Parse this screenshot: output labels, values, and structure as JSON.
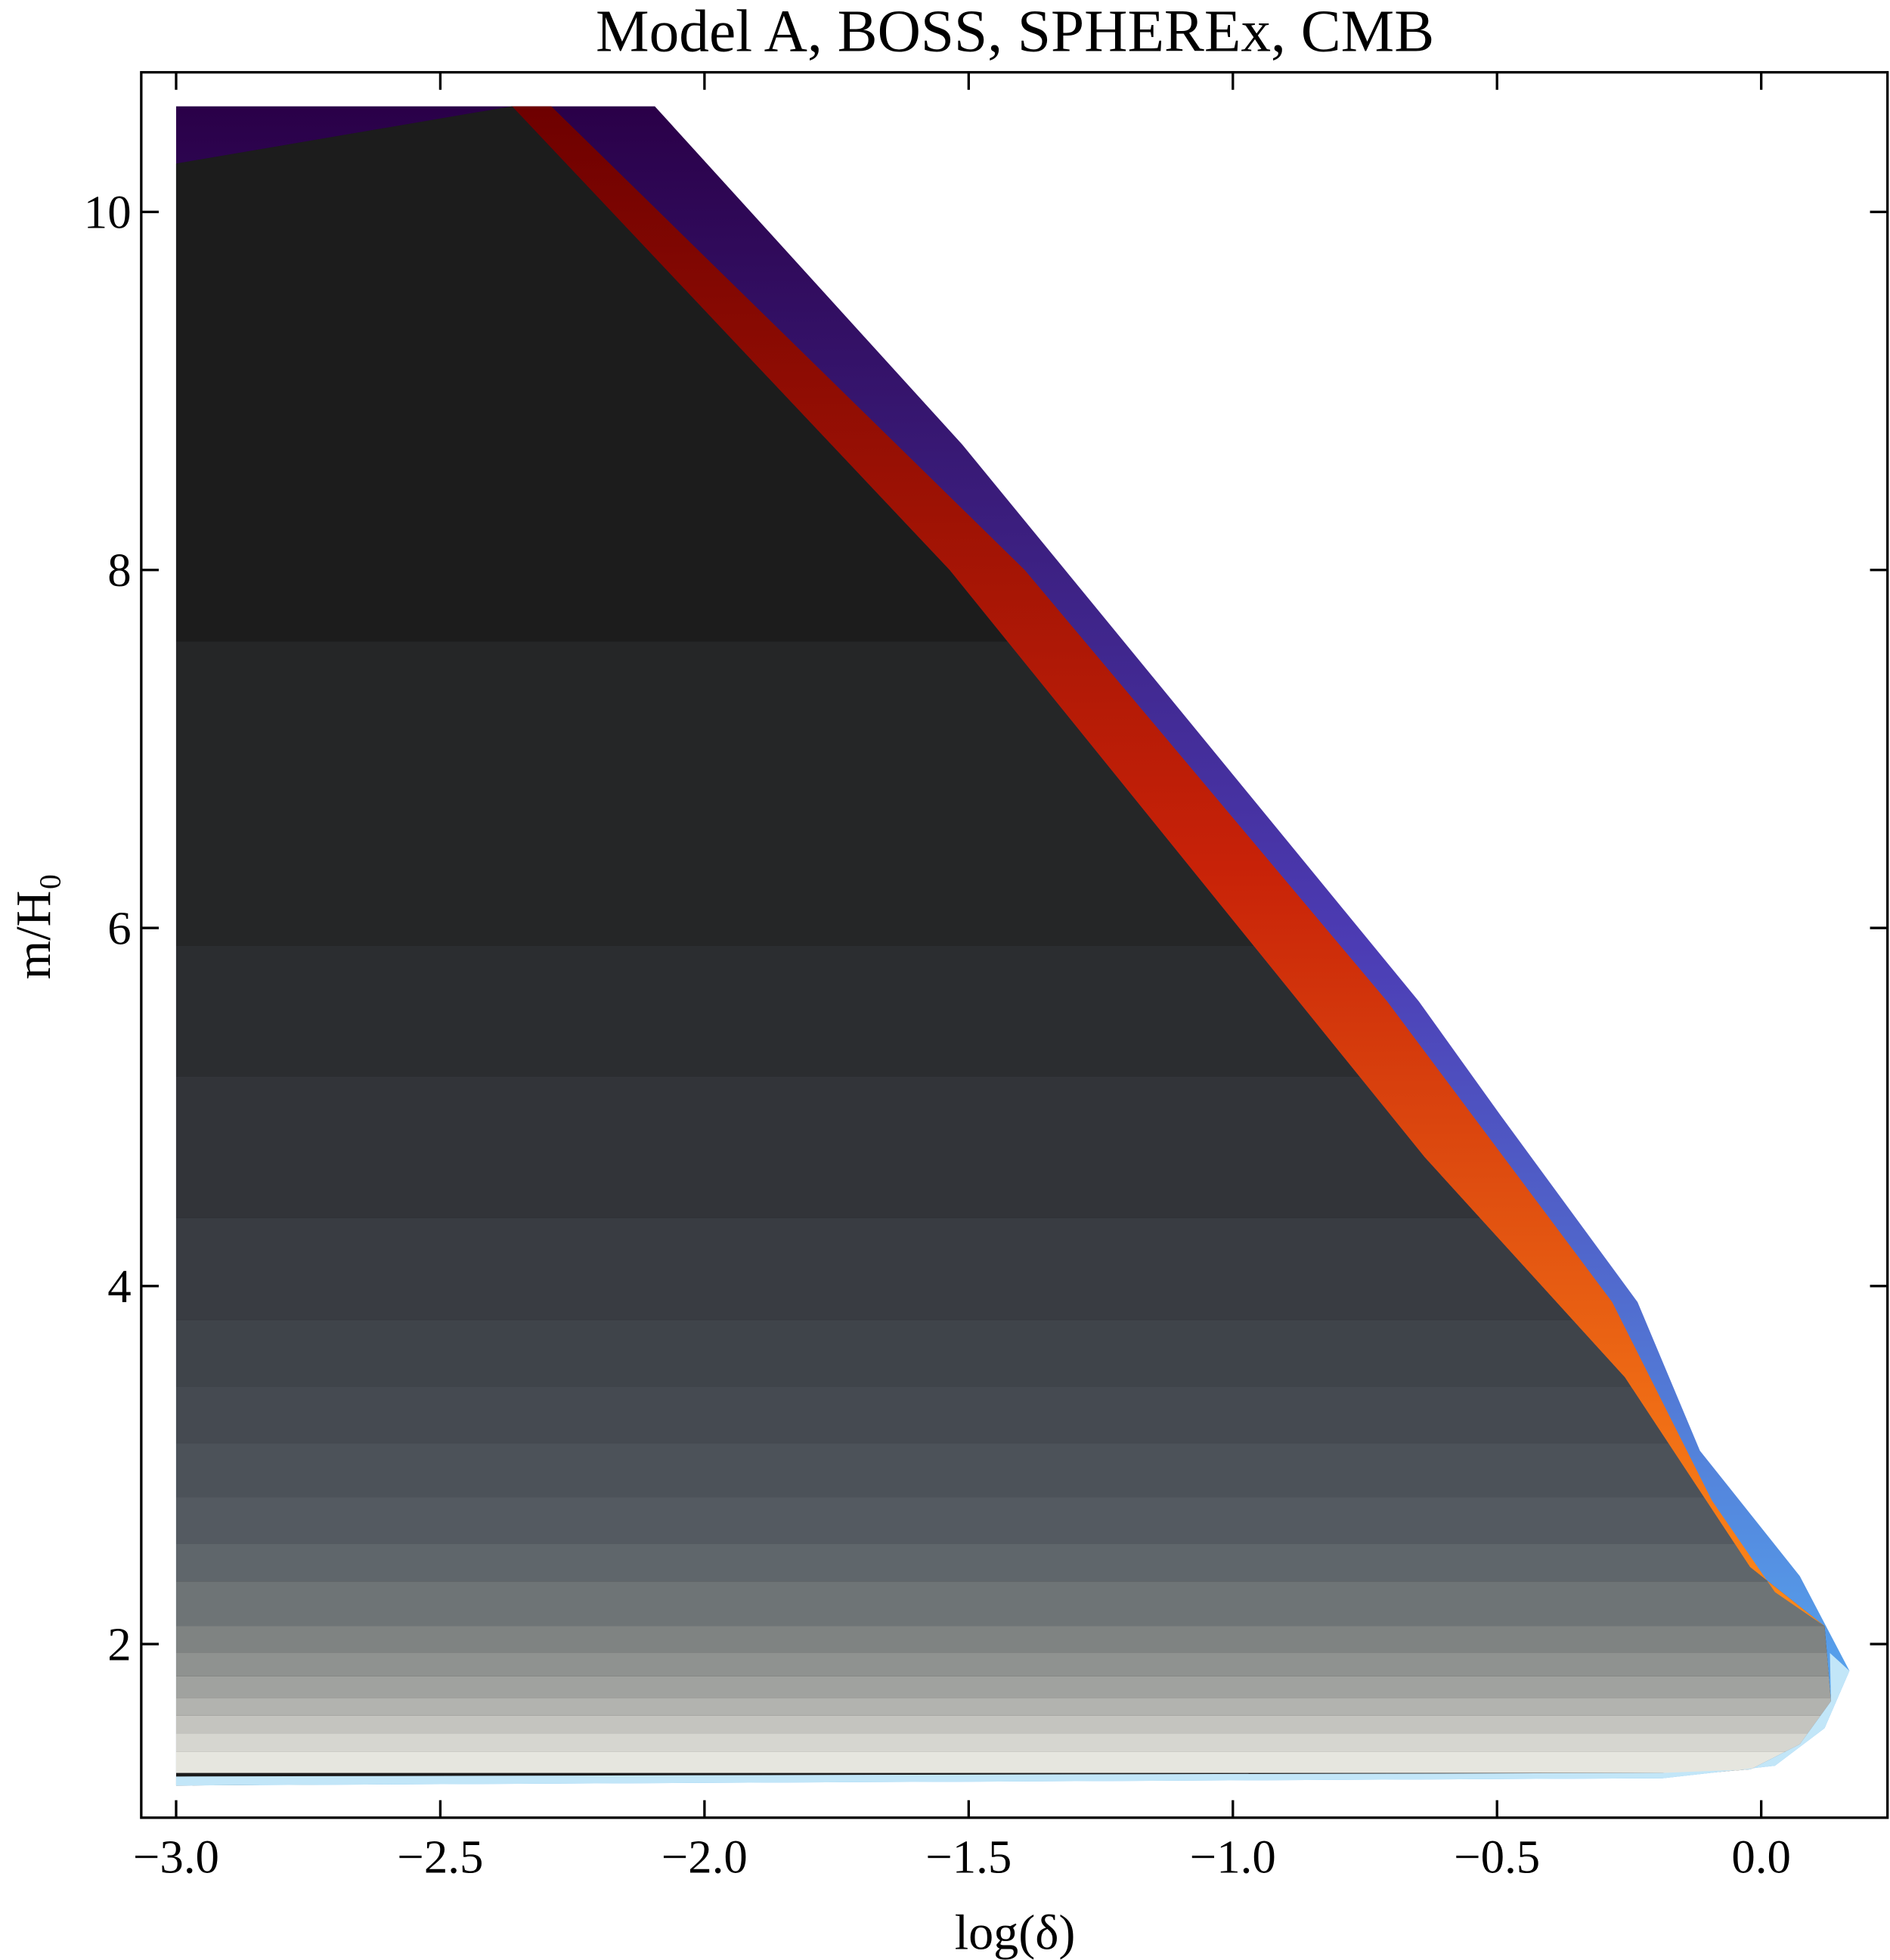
{
  "chart_data": {
    "type": "contour",
    "title": "Model A, BOSS, SPHEREx, CMB",
    "xlabel": "log(δ)",
    "ylabel": "m/H₀",
    "xlim": [
      -3.066,
      0.239
    ],
    "ylim": [
      1.03,
      10.78
    ],
    "xticks": [
      {
        "value": -3.0,
        "label": "−3.0"
      },
      {
        "value": -2.5,
        "label": "−2.5"
      },
      {
        "value": -2.0,
        "label": "−2.0"
      },
      {
        "value": -1.5,
        "label": "−1.5"
      },
      {
        "value": -1.0,
        "label": "−1.0"
      },
      {
        "value": -0.5,
        "label": "−0.5"
      },
      {
        "value": 0.0,
        "label": "0.0"
      }
    ],
    "yticks": [
      2,
      4,
      6,
      8,
      10
    ],
    "regions": [
      {
        "color": [
          "#2a0048",
          "#4c3cb4",
          "#58b0f4"
        ],
        "x": [
          -3,
          -2.094,
          -1.512,
          -0.648,
          -0.495,
          -0.234,
          -0.116,
          0.073,
          0.167,
          0.12,
          0.026,
          -0.187,
          -3
        ],
        "y": [
          10.59,
          10.59,
          8.7,
          5.59,
          4.96,
          3.91,
          3.08,
          2.38,
          1.85,
          1.53,
          1.32,
          1.25,
          1.21
        ]
      },
      {
        "color": "#1b1b1b",
        "x": [
          -3,
          -2.364,
          -1.536,
          -0.637,
          -0.258,
          -0.021,
          0.12,
          0.132,
          0.073,
          -0.02,
          -0.187,
          -3
        ],
        "y": [
          10.27,
          10.59,
          8.0,
          4.72,
          3.49,
          2.43,
          2.1,
          1.68,
          1.44,
          1.3,
          1.26,
          1.21
        ]
      },
      {
        "color": [
          "#6e0000",
          "#c82208",
          "#ff8a1a"
        ],
        "x": [
          -2.364,
          -2.29,
          -1.394,
          -0.708,
          -0.282,
          -0.093,
          0.026,
          0.12,
          -0.021,
          -0.258,
          -0.637,
          -1.536
        ],
        "y": [
          10.59,
          10.59,
          8.0,
          5.59,
          3.91,
          2.8,
          2.29,
          2.1,
          2.43,
          3.49,
          4.72,
          8.0
        ]
      },
      {
        "color": "#c2e6f8",
        "x": [
          -3,
          -0.187,
          0.026,
          0.12,
          0.167,
          0.13,
          0.132,
          0.073,
          -0.02,
          -0.187,
          -3
        ],
        "y": [
          1.21,
          1.25,
          1.32,
          1.53,
          1.85,
          1.95,
          1.68,
          1.44,
          1.3,
          1.28,
          1.26
        ]
      }
    ],
    "bands": [
      {
        "y": 7.6,
        "color": "#1c1c1c"
      },
      {
        "y": 5.9,
        "color": "#252627"
      },
      {
        "y": 5.17,
        "color": "#2b2d30"
      },
      {
        "y": 4.38,
        "color": "#323439"
      },
      {
        "y": 3.81,
        "color": "#393c42"
      },
      {
        "y": 3.44,
        "color": "#3f444a"
      },
      {
        "y": 3.12,
        "color": "#454a51"
      },
      {
        "y": 2.82,
        "color": "#4c5259"
      },
      {
        "y": 2.56,
        "color": "#545a61"
      },
      {
        "y": 2.35,
        "color": "#5f666b"
      },
      {
        "y": 2.1,
        "color": "#6e7476"
      },
      {
        "y": 1.95,
        "color": "#7f8382"
      },
      {
        "y": 1.82,
        "color": "#8f9290"
      },
      {
        "y": 1.7,
        "color": "#a0a29f"
      },
      {
        "y": 1.6,
        "color": "#b2b3af"
      },
      {
        "y": 1.5,
        "color": "#c4c4bf"
      },
      {
        "y": 1.4,
        "color": "#d6d6d0"
      },
      {
        "y": 1.28,
        "color": "#e6e6df"
      }
    ]
  }
}
